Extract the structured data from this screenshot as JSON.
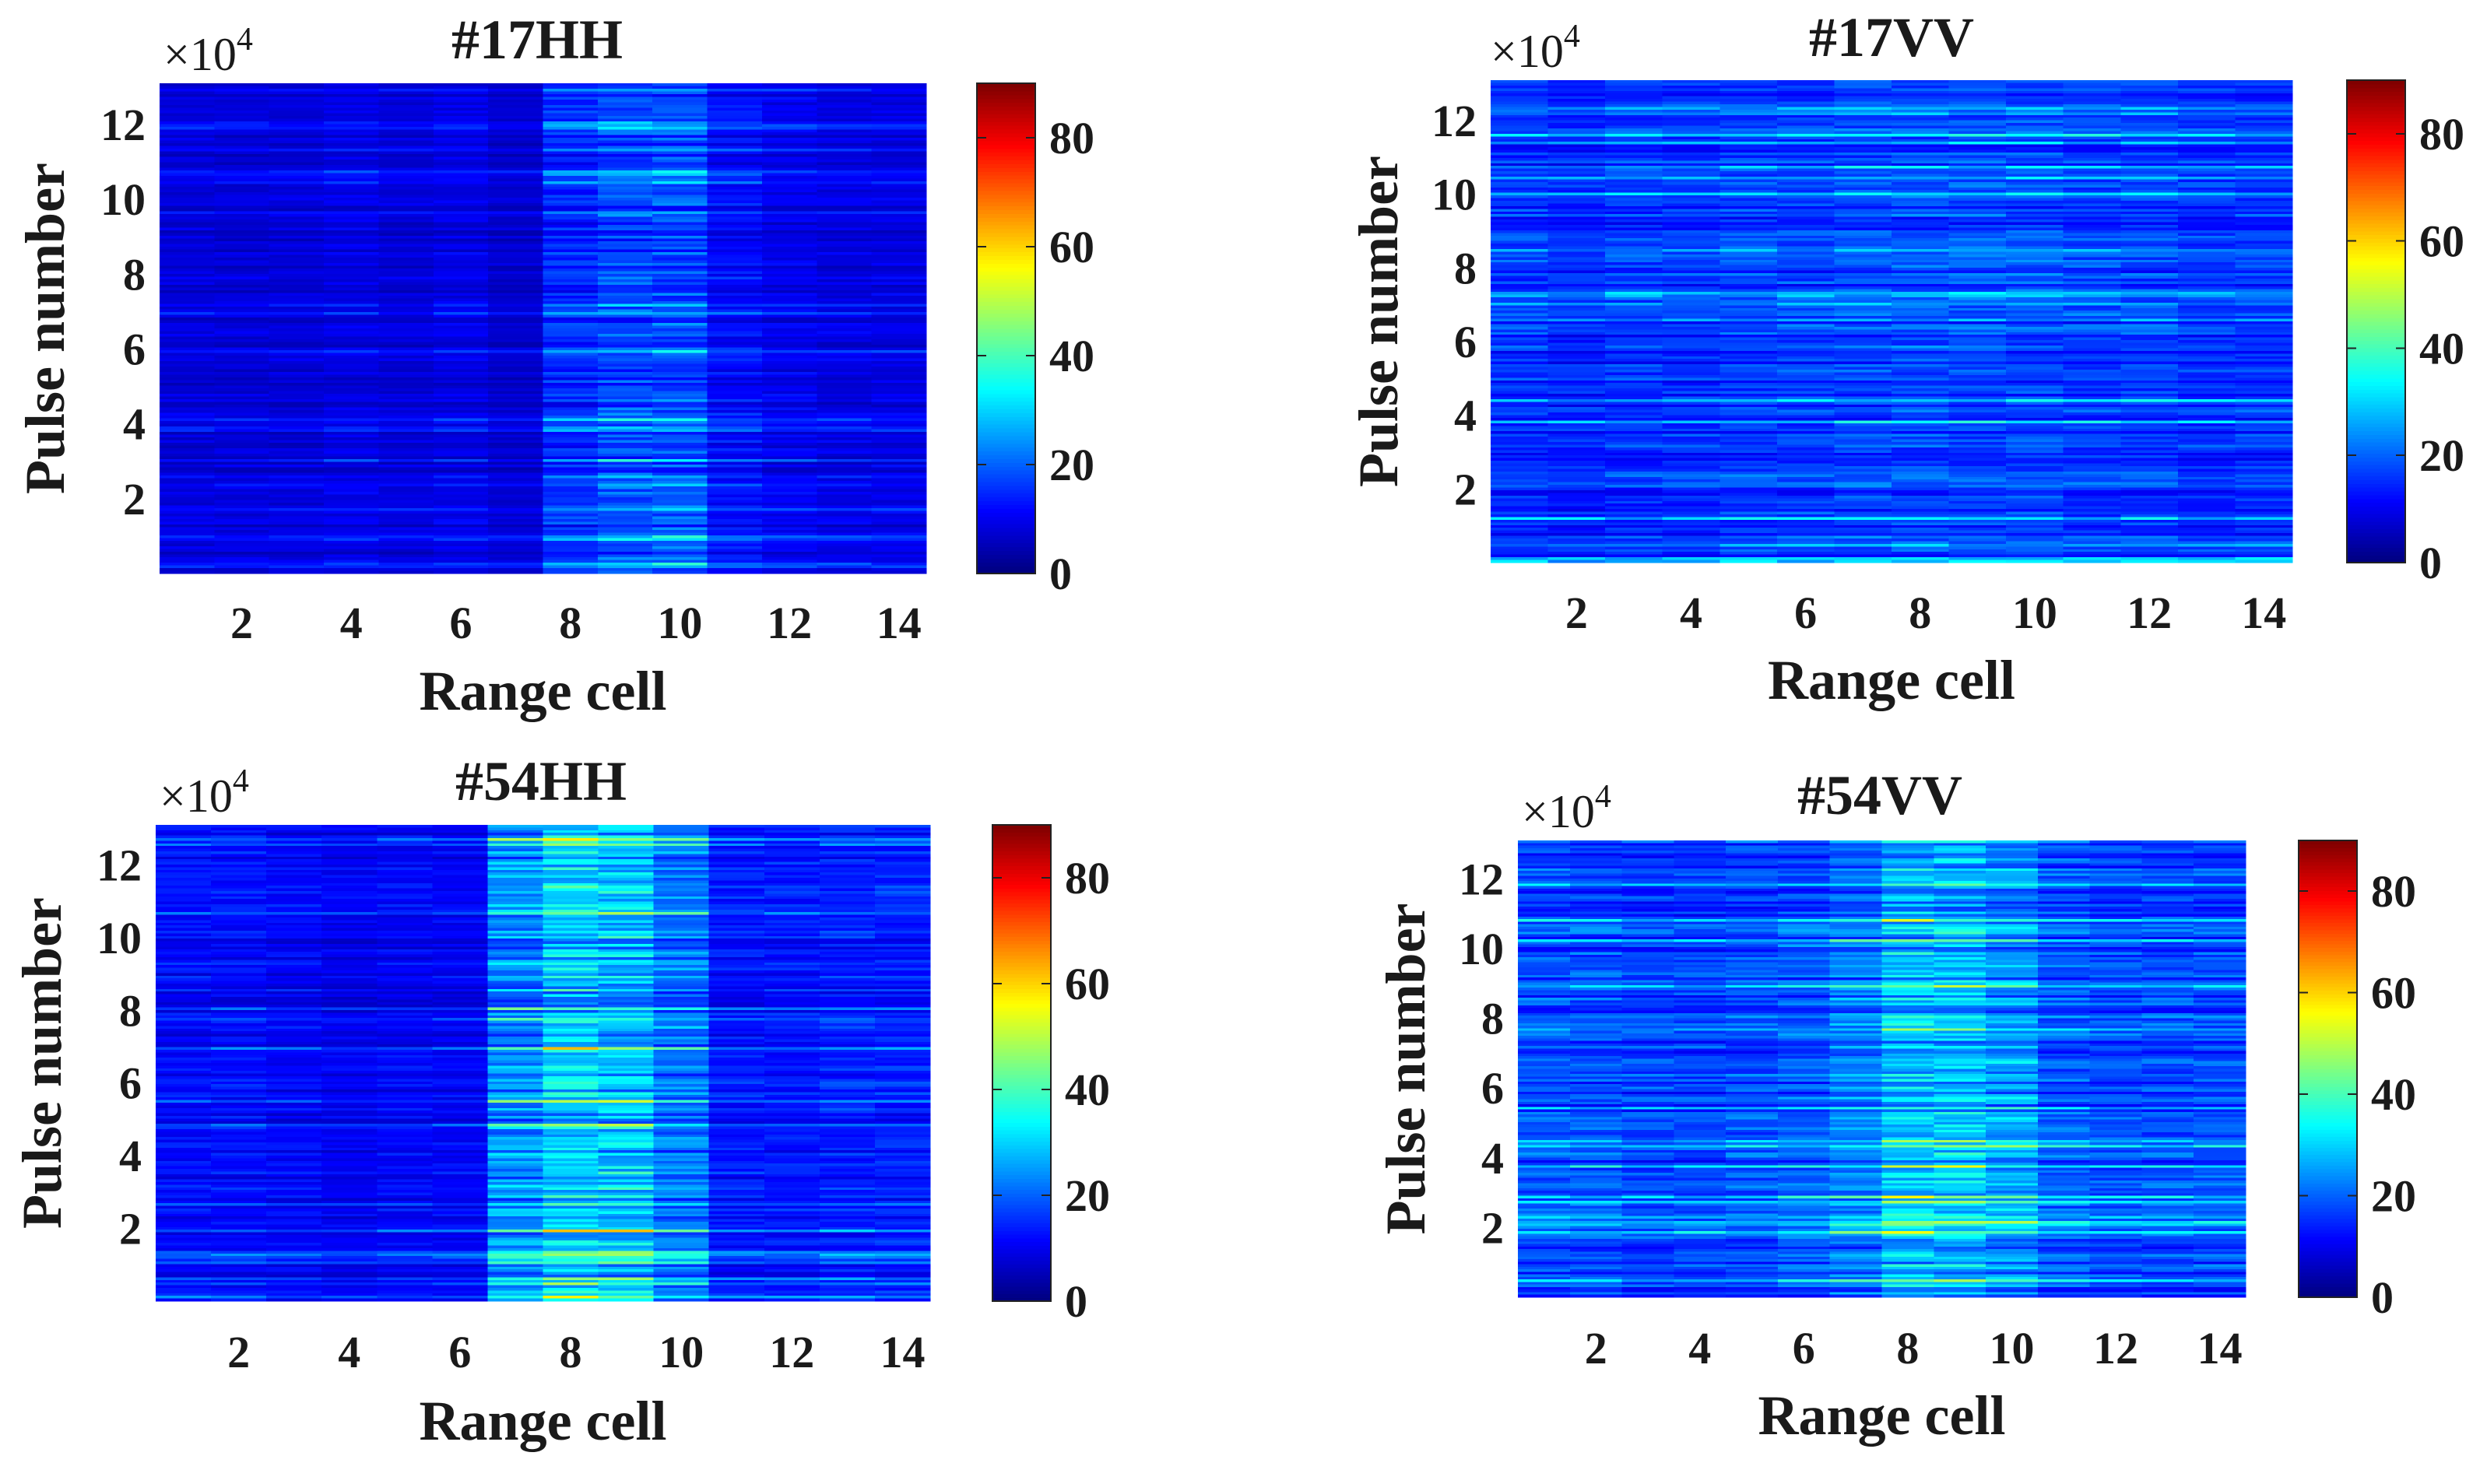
{
  "figure": {
    "colors": {
      "background": "#ffffff",
      "text": "#1a1a1a",
      "colormap": "jet"
    }
  },
  "chart_data": [
    {
      "type": "heatmap",
      "title": "#17HH",
      "xlabel": "Range cell",
      "ylabel": "Pulse number",
      "y_exponent_label": "×10",
      "y_exponent_power": "4",
      "x_range": [
        0.5,
        14.5
      ],
      "x_ticks": [
        2,
        4,
        6,
        8,
        10,
        12,
        14
      ],
      "x_tick_labels": [
        "2",
        "4",
        "6",
        "8",
        "10",
        "12",
        "14"
      ],
      "y_range": [
        0,
        13.1
      ],
      "y_ticks": [
        2,
        4,
        6,
        8,
        10,
        12
      ],
      "y_tick_labels": [
        "2",
        "4",
        "6",
        "8",
        "10",
        "12"
      ],
      "colorbar": {
        "min": 0,
        "max": 90,
        "ticks": [
          0,
          20,
          40,
          60,
          80
        ],
        "tick_labels": [
          "0",
          "20",
          "40",
          "60",
          "80"
        ]
      },
      "range_cells": [
        1,
        2,
        3,
        4,
        5,
        6,
        7,
        8,
        9,
        10,
        11,
        12,
        13,
        14
      ],
      "mean_amplitude": [
        8,
        8,
        8,
        9,
        8,
        9,
        7,
        15,
        18,
        18,
        12,
        10,
        9,
        9
      ]
    },
    {
      "type": "heatmap",
      "title": "#17VV",
      "xlabel": "Range cell",
      "ylabel": "Pulse number",
      "y_exponent_label": "×10",
      "y_exponent_power": "4",
      "x_range": [
        0.5,
        14.5
      ],
      "x_ticks": [
        2,
        4,
        6,
        8,
        10,
        12,
        14
      ],
      "x_tick_labels": [
        "2",
        "4",
        "6",
        "8",
        "10",
        "12",
        "14"
      ],
      "y_range": [
        0,
        13.1
      ],
      "y_ticks": [
        2,
        4,
        6,
        8,
        10,
        12
      ],
      "y_tick_labels": [
        "2",
        "4",
        "6",
        "8",
        "10",
        "12"
      ],
      "colorbar": {
        "min": 0,
        "max": 90,
        "ticks": [
          0,
          20,
          40,
          60,
          80
        ],
        "tick_labels": [
          "0",
          "20",
          "40",
          "60",
          "80"
        ]
      },
      "range_cells": [
        1,
        2,
        3,
        4,
        5,
        6,
        7,
        8,
        9,
        10,
        11,
        12,
        13,
        14
      ],
      "mean_amplitude": [
        16,
        15,
        16,
        16,
        17,
        17,
        18,
        18,
        18,
        18,
        17,
        17,
        16,
        16
      ]
    },
    {
      "type": "heatmap",
      "title": "#54HH",
      "xlabel": "Range cell",
      "ylabel": "Pulse number",
      "y_exponent_label": "×10",
      "y_exponent_power": "4",
      "x_range": [
        0.5,
        14.5
      ],
      "x_ticks": [
        2,
        4,
        6,
        8,
        10,
        12,
        14
      ],
      "x_tick_labels": [
        "2",
        "4",
        "6",
        "8",
        "10",
        "12",
        "14"
      ],
      "y_range": [
        0,
        13.1
      ],
      "y_ticks": [
        2,
        4,
        6,
        8,
        10,
        12
      ],
      "y_tick_labels": [
        "2",
        "4",
        "6",
        "8",
        "10",
        "12"
      ],
      "colorbar": {
        "min": 0,
        "max": 90,
        "ticks": [
          0,
          20,
          40,
          60,
          80
        ],
        "tick_labels": [
          "0",
          "20",
          "40",
          "60",
          "80"
        ]
      },
      "range_cells": [
        1,
        2,
        3,
        4,
        5,
        6,
        7,
        8,
        9,
        10,
        11,
        12,
        13,
        14
      ],
      "mean_amplitude": [
        12,
        12,
        11,
        10,
        11,
        11,
        24,
        30,
        29,
        22,
        13,
        13,
        14,
        14
      ]
    },
    {
      "type": "heatmap",
      "title": "#54VV",
      "xlabel": "Range cell",
      "ylabel": "Pulse number",
      "y_exponent_label": "×10",
      "y_exponent_power": "4",
      "x_range": [
        0.5,
        14.5
      ],
      "x_ticks": [
        2,
        4,
        6,
        8,
        10,
        12,
        14
      ],
      "x_tick_labels": [
        "2",
        "4",
        "6",
        "8",
        "10",
        "12",
        "14"
      ],
      "y_range": [
        0,
        13.1
      ],
      "y_ticks": [
        2,
        4,
        6,
        8,
        10,
        12
      ],
      "y_tick_labels": [
        "2",
        "4",
        "6",
        "8",
        "10",
        "12"
      ],
      "colorbar": {
        "min": 0,
        "max": 90,
        "ticks": [
          0,
          20,
          40,
          60,
          80
        ],
        "tick_labels": [
          "0",
          "20",
          "40",
          "60",
          "80"
        ]
      },
      "range_cells": [
        1,
        2,
        3,
        4,
        5,
        6,
        7,
        8,
        9,
        10,
        11,
        12,
        13,
        14
      ],
      "mean_amplitude": [
        18,
        18,
        17,
        17,
        18,
        19,
        22,
        28,
        28,
        25,
        19,
        18,
        18,
        18
      ]
    }
  ]
}
